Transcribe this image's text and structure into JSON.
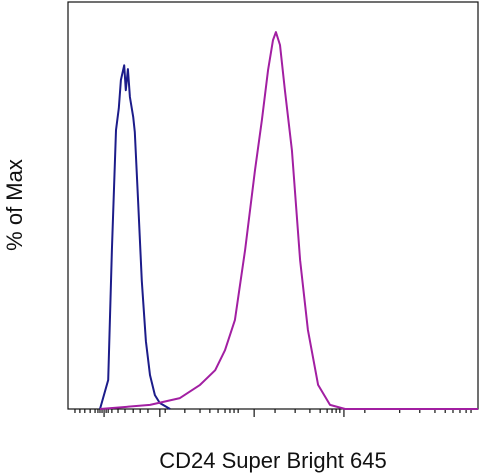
{
  "chart_data": {
    "type": "line",
    "x_label": "CD24 Super Bright 645",
    "y_label": "% of Max",
    "xlim": [
      0,
      100
    ],
    "ylim": [
      0,
      108
    ],
    "xticks": [
      8.8,
      22.4,
      45.4,
      67.3
    ],
    "xminorticks": [
      1.7,
      2.9,
      4.1,
      5.4,
      6.6,
      7.3,
      7.8,
      8.3,
      9.3,
      9.8,
      10.7,
      12.2,
      13.9,
      15.9,
      17.6,
      19.5,
      23.7,
      28.5,
      32.2,
      34.6,
      36.6,
      38.3,
      39.5,
      40.5,
      41.5,
      50.5,
      55.4,
      59.0,
      61.5,
      63.2,
      64.4,
      65.4,
      66.3,
      72.4,
      80.9,
      85.8,
      89.5,
      92.0,
      93.9,
      95.6,
      97.1,
      98.3
    ],
    "series": [
      {
        "color": "#1c1c8a",
        "x": [
          7.8,
          9.8,
          10.7,
          11.7,
          12.4,
          12.9,
          13.7,
          14.1,
          14.6,
          15.1,
          15.9,
          16.3,
          17.1,
          18.0,
          19.0,
          20.0,
          21.2,
          22.4,
          24.9
        ],
        "values": [
          0,
          7.7,
          42.2,
          74.0,
          79.8,
          87.3,
          91.2,
          84.6,
          90.2,
          82.8,
          77.5,
          73.5,
          55.2,
          34.0,
          18.0,
          9.0,
          3.7,
          1.6,
          0
        ]
      },
      {
        "color": "#a21fa2",
        "x": [
          7.8,
          20.0,
          27.3,
          32.2,
          35.9,
          38.3,
          40.7,
          43.2,
          45.6,
          47.3,
          48.8,
          50.0,
          50.7,
          51.7,
          52.9,
          54.6,
          56.6,
          58.5,
          61.0,
          63.9,
          67.6,
          100
        ],
        "values": [
          0,
          1.1,
          2.9,
          6.4,
          10.3,
          15.6,
          23.6,
          42.2,
          63.4,
          76.7,
          90.0,
          97.9,
          100,
          96.6,
          84.6,
          68.7,
          39.5,
          21.0,
          6.4,
          1.1,
          0,
          0
        ]
      }
    ]
  }
}
